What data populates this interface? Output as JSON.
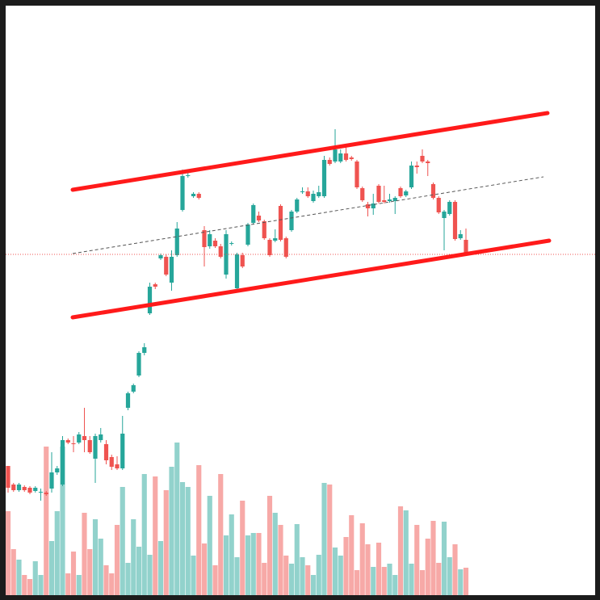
{
  "chart_data": {
    "type": "candlestick",
    "up_color": "#26a69a",
    "down_color": "#ef5350",
    "ylim": [
      0,
      743
    ],
    "volume_ylim": [
      0,
      743
    ],
    "open": [
      166,
      143,
      136,
      140,
      139,
      135,
      133,
      133,
      138,
      158,
      143,
      198,
      194,
      195,
      203,
      198,
      175,
      198,
      193,
      177,
      168,
      163,
      238,
      258,
      278,
      306,
      355,
      391,
      423,
      425,
      393,
      427,
      483,
      525,
      500,
      503,
      458,
      438,
      445,
      438,
      403,
      441,
      386,
      427,
      440,
      467,
      476,
      469,
      446,
      445,
      488,
      448,
      458,
      481,
      505,
      506,
      494,
      500,
      500,
      545,
      543,
      543,
      553,
      548,
      543,
      510,
      490,
      485,
      513,
      495,
      494,
      494,
      510,
      501,
      511,
      538,
      550,
      543,
      515,
      498,
      473,
      478,
      493,
      448,
      446
    ],
    "high": [
      166,
      145,
      145,
      142,
      141,
      141,
      138,
      135,
      183,
      166,
      203,
      200,
      203,
      208,
      238,
      203,
      206,
      213,
      198,
      180,
      178,
      228,
      258,
      268,
      308,
      318,
      393,
      393,
      429,
      428,
      433,
      468,
      533,
      531,
      505,
      505,
      463,
      458,
      448,
      441,
      458,
      444,
      430,
      430,
      467,
      491,
      481,
      471,
      448,
      459,
      490,
      450,
      483,
      498,
      511,
      511,
      507,
      513,
      550,
      548,
      583,
      558,
      563,
      550,
      545,
      512,
      493,
      503,
      515,
      513,
      503,
      500,
      512,
      508,
      543,
      543,
      558,
      545,
      517,
      500,
      483,
      495,
      495,
      458,
      460
    ],
    "low": [
      133,
      134,
      134,
      134,
      131,
      133,
      123,
      129,
      133,
      155,
      141,
      193,
      183,
      193,
      183,
      181,
      145,
      195,
      168,
      161,
      161,
      161,
      235,
      256,
      276,
      303,
      353,
      385,
      421,
      401,
      383,
      425,
      481,
      523,
      498,
      496,
      413,
      435,
      436,
      423,
      398,
      439,
      384,
      411,
      438,
      465,
      468,
      446,
      425,
      443,
      444,
      423,
      456,
      479,
      503,
      498,
      492,
      498,
      498,
      538,
      541,
      541,
      543,
      544,
      509,
      493,
      475,
      477,
      491,
      491,
      492,
      478,
      498,
      499,
      509,
      528,
      541,
      525,
      496,
      478,
      433,
      476,
      445,
      446,
      426
    ],
    "close": [
      139,
      136,
      143,
      136,
      133,
      139,
      134,
      131,
      158,
      163,
      198,
      195,
      193,
      205,
      198,
      183,
      203,
      205,
      173,
      165,
      163,
      206,
      256,
      266,
      306,
      313,
      388,
      388,
      427,
      403,
      425,
      460,
      525,
      526,
      503,
      498,
      437,
      453,
      438,
      425,
      453,
      442,
      428,
      413,
      465,
      489,
      470,
      448,
      427,
      448,
      446,
      425,
      481,
      496,
      506,
      500,
      503,
      505,
      545,
      540,
      558,
      553,
      545,
      546,
      511,
      495,
      485,
      491,
      493,
      493,
      496,
      498,
      500,
      506,
      538,
      536,
      543,
      541,
      498,
      480,
      481,
      493,
      447,
      453,
      428
    ],
    "volume": [
      110,
      63,
      50,
      31,
      26,
      48,
      31,
      190,
      73,
      110,
      190,
      33,
      60,
      31,
      108,
      63,
      100,
      76,
      43,
      33,
      93,
      140,
      46,
      100,
      66,
      156,
      56,
      153,
      73,
      136,
      165,
      195,
      146,
      140,
      55,
      167,
      70,
      129,
      43,
      156,
      80,
      106,
      53,
      123,
      80,
      83,
      83,
      46,
      129,
      108,
      93,
      55,
      45,
      94,
      53,
      43,
      31,
      56,
      145,
      143,
      65,
      55,
      78,
      105,
      37,
      95,
      69,
      41,
      71,
      41,
      45,
      31,
      116,
      111,
      45,
      93,
      37,
      76,
      98,
      46,
      97,
      53,
      69,
      38,
      40
    ]
  }
}
